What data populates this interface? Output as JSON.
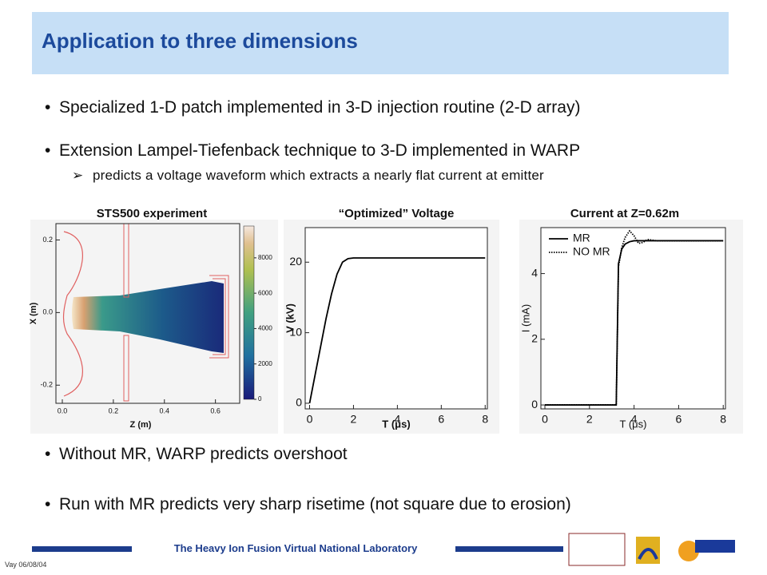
{
  "header": {
    "title": "Application to three dimensions"
  },
  "bullets": [
    {
      "text": "Specialized 1-D patch implemented in 3-D injection routine (2-D array)"
    },
    {
      "text": "Extension Lampel-Tiefenback technique to 3-D implemented in WARP",
      "sub": "predicts a voltage waveform which extracts a nearly flat current at emitter"
    },
    {
      "text": "Without MR, WARP predicts overshoot"
    },
    {
      "text": "Run with MR predicts very sharp risetime (not square due to erosion)"
    }
  ],
  "chart_data": [
    {
      "type": "image",
      "title": "STS500 experiment",
      "x_label": "Z (m)",
      "y_label": "X (m)",
      "xlim": [
        -0.025,
        0.695
      ],
      "xticks": [
        {
          "value": 0,
          "label": "0.0"
        },
        {
          "value": 0.2,
          "label": "0.2"
        },
        {
          "value": 0.4,
          "label": "0.4"
        },
        {
          "value": 0.6,
          "label": "0.6"
        }
      ],
      "ylim": [
        -0.25,
        0.245
      ],
      "yticks": [
        {
          "value": -0.2,
          "label": "-0.2"
        },
        {
          "value": 0,
          "label": "0.0"
        },
        {
          "value": 0.2,
          "label": "0.2"
        }
      ],
      "colorbar": {
        "lim": [
          0,
          9800
        ],
        "ticks": [
          0,
          2000,
          4000,
          6000,
          8000
        ]
      }
    },
    {
      "type": "line",
      "title": "“Optimized” Voltage",
      "x_label": "T (μs)",
      "y_label": "V (kV)",
      "x": [
        0,
        0.25,
        0.5,
        0.75,
        1,
        1.25,
        1.5,
        1.75,
        2,
        3,
        4,
        5,
        6,
        7,
        8
      ],
      "values": [
        0,
        4,
        8,
        12,
        15.5,
        18.3,
        20,
        20.5,
        20.6,
        20.6,
        20.6,
        20.6,
        20.6,
        20.6,
        20.6
      ],
      "color": "#000000",
      "xlim": [
        -0.2,
        8.1
      ],
      "xticks": [
        0,
        2,
        4,
        6,
        8
      ],
      "ylim": [
        -0.8,
        24.9
      ],
      "yticks": [
        0,
        10,
        20
      ]
    },
    {
      "type": "line",
      "title": "Current at Z=0.62m",
      "x_label": "T (μs)",
      "y_label": "I (mA)",
      "x": [
        0,
        3.1,
        3.2,
        3.3,
        3.45,
        3.6,
        3.8,
        4.0,
        4.2,
        4.4,
        4.6,
        5,
        6,
        7,
        8
      ],
      "series": [
        {
          "name": "MR",
          "color": "#000000",
          "linestyle": "solid",
          "values": [
            0,
            0,
            0,
            4.3,
            4.75,
            4.9,
            4.97,
            5.0,
            5.0,
            5.0,
            5.0,
            5.0,
            5.0,
            5.0,
            5.0
          ]
        },
        {
          "name": "NO MR",
          "color": "#000000",
          "linestyle": "dotted",
          "values": [
            0,
            0,
            0,
            4.2,
            4.8,
            5.1,
            5.3,
            5.15,
            4.92,
            4.95,
            5.04,
            5.0,
            5.0,
            5.0,
            5.0
          ]
        }
      ],
      "xlim": [
        -0.18,
        8.1
      ],
      "xticks": [
        0,
        2,
        4,
        6,
        8
      ],
      "ylim": [
        -0.12,
        5.4
      ],
      "yticks": [
        0,
        2,
        4
      ],
      "legend": "upper-left"
    }
  ],
  "footer": {
    "lab": "The Heavy Ion Fusion Virtual National Laboratory",
    "author": "Vay 06/08/04"
  }
}
